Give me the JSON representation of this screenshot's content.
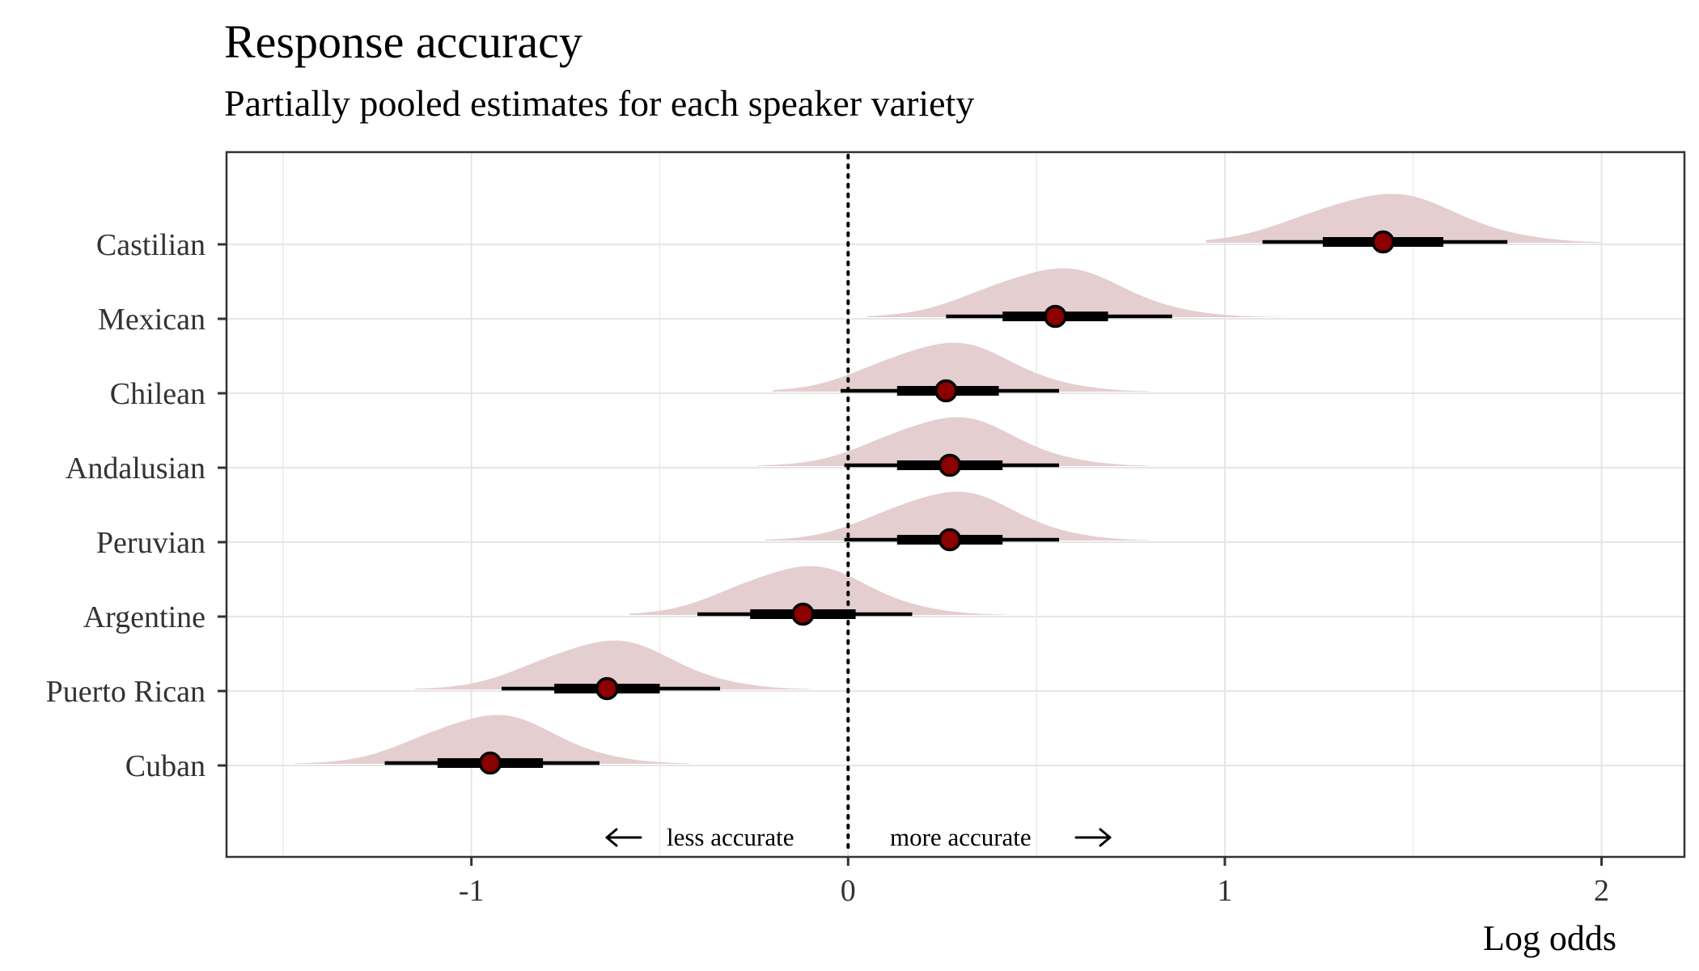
{
  "chart_data": {
    "type": "dot-interval",
    "title": "Response accuracy",
    "subtitle": "Partially pooled estimates for each speaker variety",
    "xlabel": "Log odds",
    "ylabel": "",
    "xlim": [
      -1.65,
      2.22
    ],
    "x_ticks": [
      -1,
      0,
      1,
      2
    ],
    "x_tick_labels": [
      "-1",
      "0",
      "1",
      "2"
    ],
    "grid": true,
    "reference_line": {
      "x": 0,
      "style": "dotted"
    },
    "annotations": {
      "left": "less accurate",
      "right": "more accurate"
    },
    "colors": {
      "point_fill": "#8B0000",
      "density_fill": "#E3CBCD",
      "interval": "#000000",
      "grid": "#E6E6E6"
    },
    "categories": [
      "Castilian",
      "Mexican",
      "Chilean",
      "Andalusian",
      "Peruvian",
      "Argentine",
      "Puerto Rican",
      "Cuban"
    ],
    "estimates": [
      {
        "variety": "Castilian",
        "median": 1.42,
        "inner": [
          1.26,
          1.58
        ],
        "outer": [
          1.1,
          1.75
        ],
        "density_range": [
          0.95,
          2.0
        ]
      },
      {
        "variety": "Mexican",
        "median": 0.55,
        "inner": [
          0.41,
          0.69
        ],
        "outer": [
          0.26,
          0.86
        ],
        "density_range": [
          0.05,
          1.16
        ]
      },
      {
        "variety": "Chilean",
        "median": 0.26,
        "inner": [
          0.13,
          0.4
        ],
        "outer": [
          -0.02,
          0.56
        ],
        "density_range": [
          -0.2,
          0.8
        ]
      },
      {
        "variety": "Andalusian",
        "median": 0.27,
        "inner": [
          0.13,
          0.41
        ],
        "outer": [
          -0.01,
          0.56
        ],
        "density_range": [
          -0.24,
          0.8
        ]
      },
      {
        "variety": "Peruvian",
        "median": 0.27,
        "inner": [
          0.13,
          0.41
        ],
        "outer": [
          -0.01,
          0.56
        ],
        "density_range": [
          -0.22,
          0.8
        ]
      },
      {
        "variety": "Argentine",
        "median": -0.12,
        "inner": [
          -0.26,
          0.02
        ],
        "outer": [
          -0.4,
          0.17
        ],
        "density_range": [
          -0.58,
          0.42
        ]
      },
      {
        "variety": "Puerto Rican",
        "median": -0.64,
        "inner": [
          -0.78,
          -0.5
        ],
        "outer": [
          -0.92,
          -0.34
        ],
        "density_range": [
          -1.15,
          -0.1
        ]
      },
      {
        "variety": "Cuban",
        "median": -0.95,
        "inner": [
          -1.09,
          -0.81
        ],
        "outer": [
          -1.23,
          -0.66
        ],
        "density_range": [
          -1.47,
          -0.42
        ]
      }
    ]
  }
}
